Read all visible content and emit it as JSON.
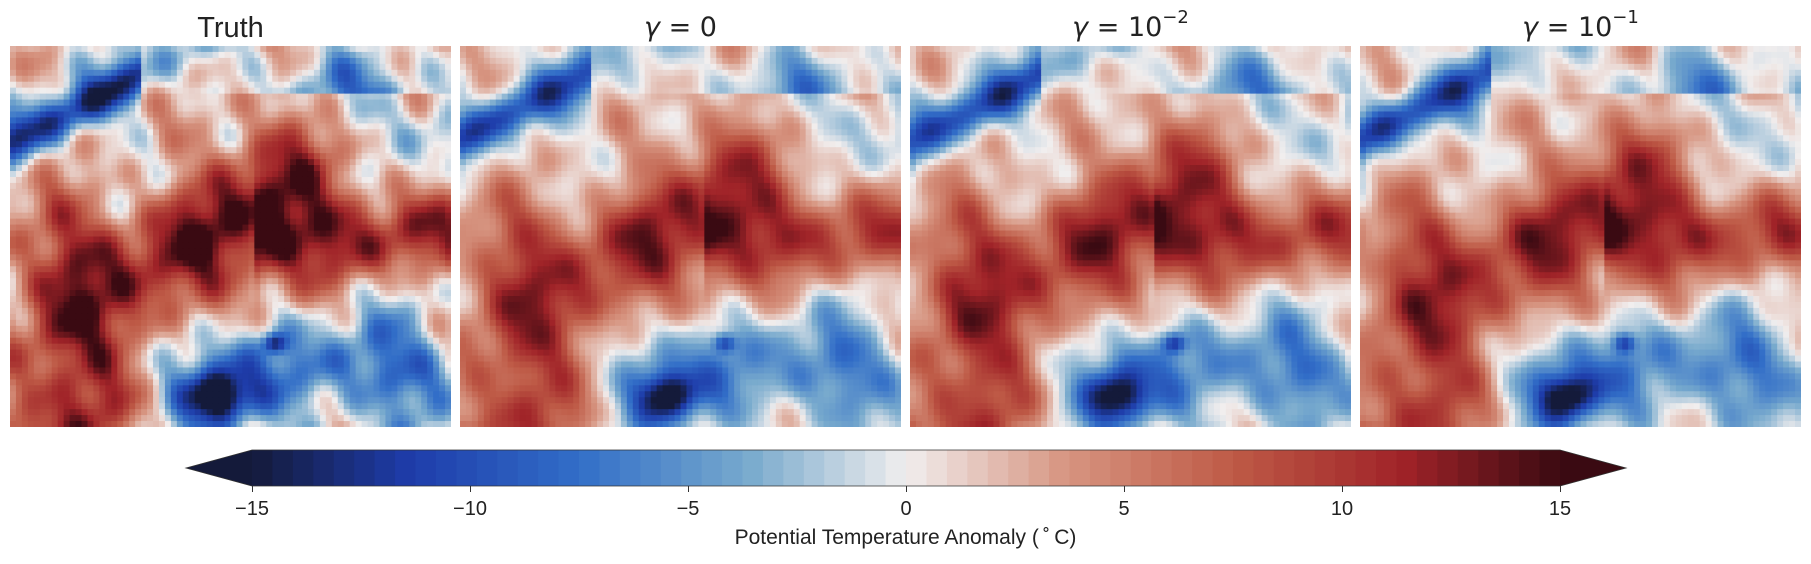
{
  "chart_data": [
    {
      "type": "heatmap",
      "title": "Truth",
      "title_parts": {
        "symbol": "",
        "eq": "",
        "base": "",
        "exp": ""
      },
      "seed": 0
    },
    {
      "type": "heatmap",
      "title": "γ = 0",
      "title_parts": {
        "symbol": "γ",
        "eq": " = ",
        "base": "0",
        "exp": ""
      },
      "seed": 1
    },
    {
      "type": "heatmap",
      "title": "γ = 10^-2",
      "title_parts": {
        "symbol": "γ",
        "eq": " = ",
        "base": "10",
        "exp": "−2"
      },
      "seed": 2
    },
    {
      "type": "heatmap",
      "title": "γ = 10^-1",
      "title_parts": {
        "symbol": "γ",
        "eq": " = ",
        "base": "10",
        "exp": "−1"
      },
      "seed": 3
    }
  ],
  "colorbar": {
    "label": "Potential Temperature Anomaly (°C)",
    "label_text": "Potential Temperature Anomaly ($^\\circ$C)",
    "display_label": "Potential Temperature Anomaly ( ˚ C)",
    "range": [
      -15,
      15
    ],
    "extend": "both",
    "colormap": "balance (blue–white–red)",
    "ticks": [
      -15,
      -10,
      -5,
      0,
      5,
      10,
      15
    ],
    "tick_labels": [
      "−15",
      "−10",
      "−5",
      "0",
      "5",
      "10",
      "15"
    ],
    "colors": {
      "min": "#141a3a",
      "low": "#1f4fc0",
      "mid_low": "#5b9ccd",
      "center": "#f1eeee",
      "mid_high": "#d07a62",
      "high": "#a52622",
      "max": "#3a0a12"
    }
  }
}
